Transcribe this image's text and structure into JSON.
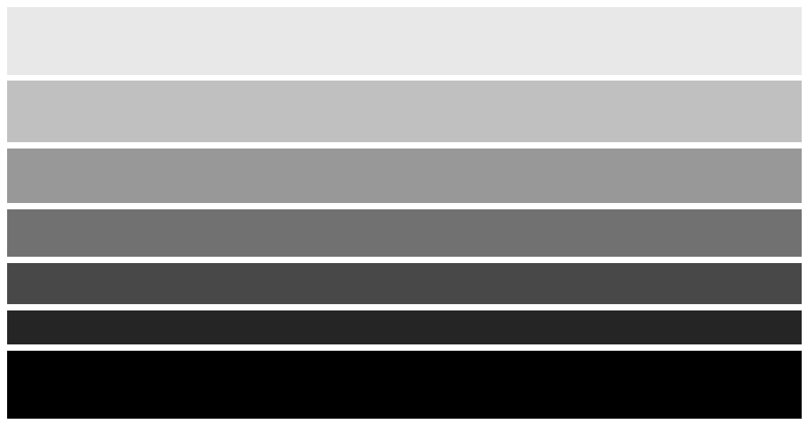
{
  "bands": [
    {
      "color": "#e8e8e8"
    },
    {
      "color": "#c0c0c0"
    },
    {
      "color": "#989898"
    },
    {
      "color": "#717171"
    },
    {
      "color": "#484848"
    },
    {
      "color": "#252525"
    },
    {
      "color": "#000000"
    }
  ]
}
